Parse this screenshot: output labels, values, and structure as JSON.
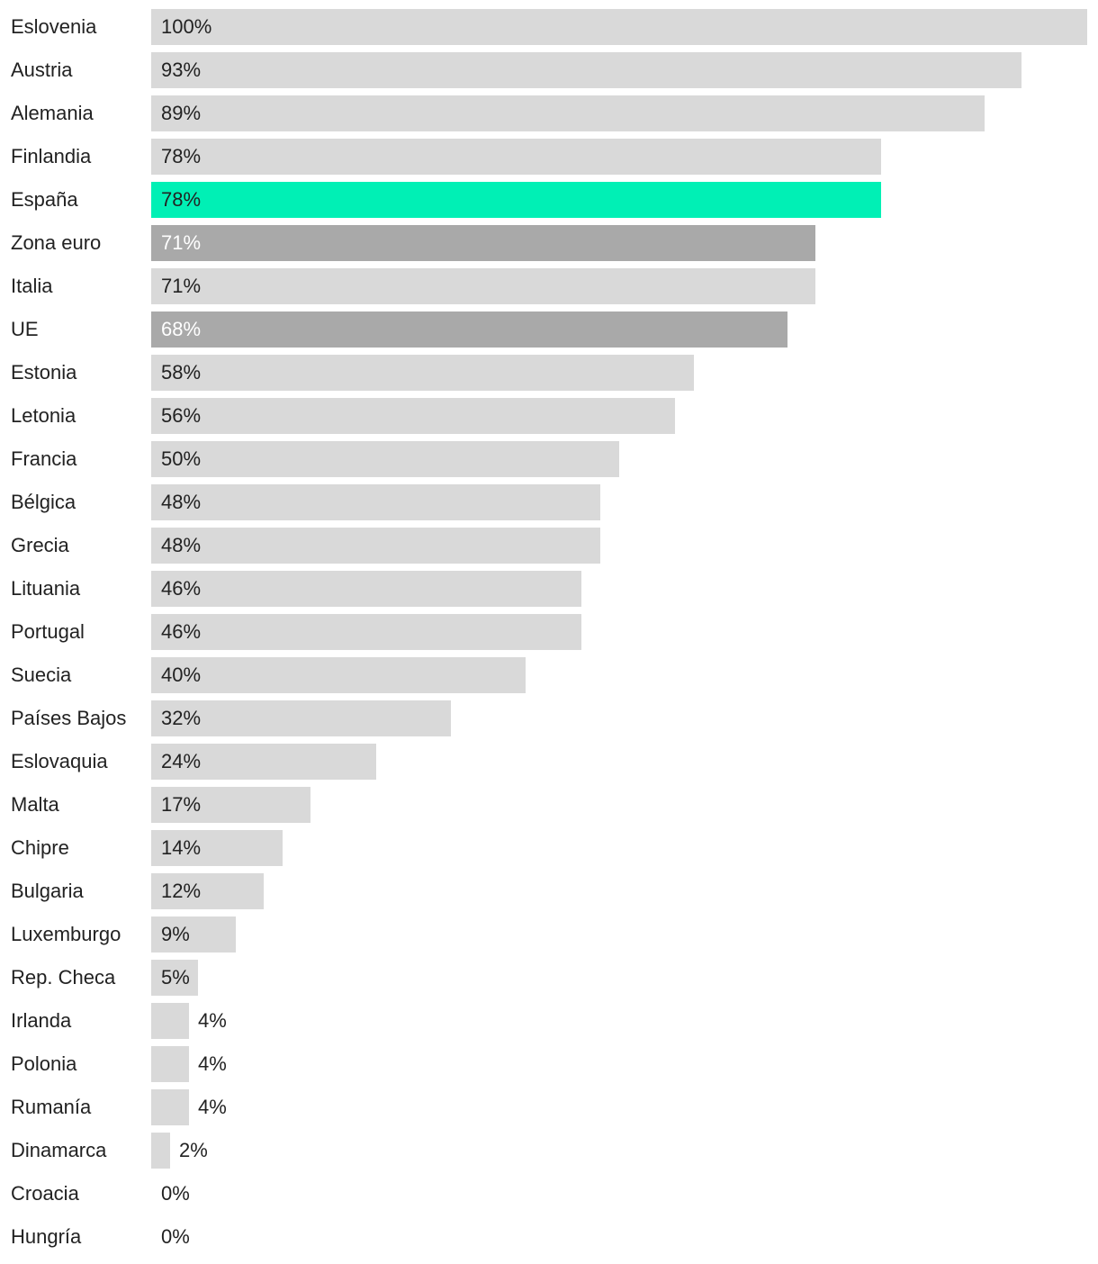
{
  "chart_data": {
    "type": "bar",
    "orientation": "horizontal",
    "categories": [
      "Eslovenia",
      "Austria",
      "Alemania",
      "Finlandia",
      "España",
      "Zona euro",
      "Italia",
      "UE",
      "Estonia",
      "Letonia",
      "Francia",
      "Bélgica",
      "Grecia",
      "Lituania",
      "Portugal",
      "Suecia",
      "Países Bajos",
      "Eslovaquia",
      "Malta",
      "Chipre",
      "Bulgaria",
      "Luxemburgo",
      "Rep. Checa",
      "Irlanda",
      "Polonia",
      "Rumanía",
      "Dinamarca",
      "Croacia",
      "Hungría"
    ],
    "values": [
      100,
      93,
      89,
      78,
      78,
      71,
      71,
      68,
      58,
      56,
      50,
      48,
      48,
      46,
      46,
      40,
      32,
      24,
      17,
      14,
      12,
      9,
      5,
      4,
      4,
      4,
      2,
      0,
      0
    ],
    "value_labels": [
      "100%",
      "93%",
      "89%",
      "78%",
      "78%",
      "71%",
      "71%",
      "68%",
      "58%",
      "56%",
      "50%",
      "48%",
      "48%",
      "46%",
      "46%",
      "40%",
      "32%",
      "24%",
      "17%",
      "14%",
      "12%",
      "9%",
      "5%",
      "4%",
      "4%",
      "4%",
      "2%",
      "0%",
      "0%"
    ],
    "highlight": {
      "España": "#00f0b5",
      "Zona euro": "#a9a9a9",
      "UE": "#a9a9a9"
    },
    "default_color": "#d9d9d9",
    "title": "",
    "xlabel": "",
    "ylabel": "",
    "xlim": [
      0,
      100
    ],
    "grid": false,
    "legend": "none"
  },
  "colors": {
    "text_dark": "#222222",
    "text_on_dark_bar": "#ffffff"
  }
}
